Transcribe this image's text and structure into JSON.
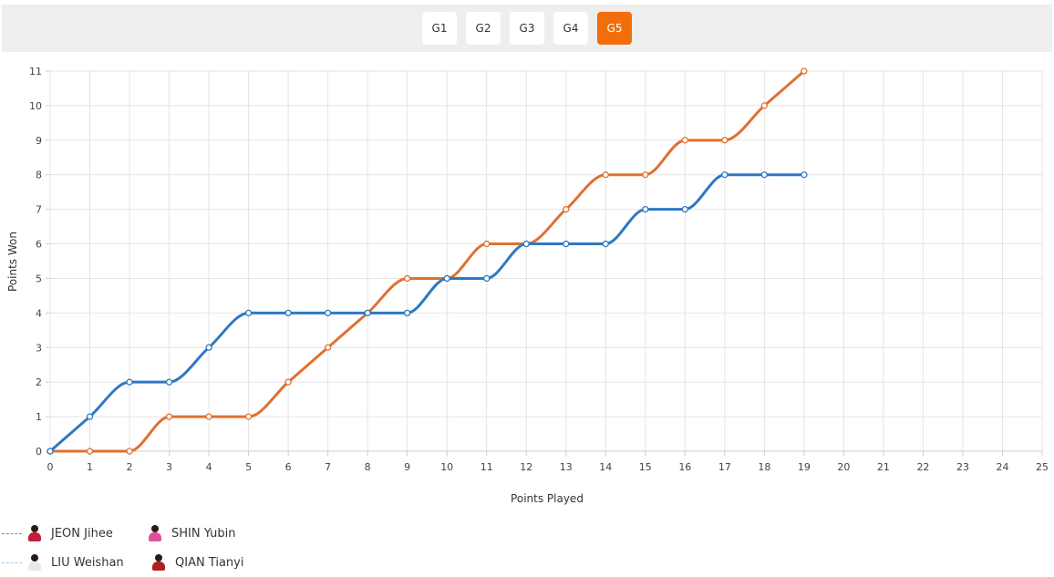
{
  "tabs": [
    {
      "label": "G1",
      "active": false
    },
    {
      "label": "G2",
      "active": false
    },
    {
      "label": "G3",
      "active": false
    },
    {
      "label": "G4",
      "active": false
    },
    {
      "label": "G5",
      "active": true
    }
  ],
  "colors": {
    "accent": "#f26d0b",
    "series_orange": "#e07030",
    "series_blue": "#2f78c4",
    "legend_blue": "#a9cdea"
  },
  "legend": [
    {
      "name": "JEON Jihee",
      "color": "#e07030",
      "avatar_color": "#c0203a"
    },
    {
      "name": "SHIN Yubin",
      "color": "",
      "avatar_color": "#e0509a"
    },
    {
      "name": "LIU Weishan",
      "color": "#a9cdea",
      "avatar_color": "#e8e8e8"
    },
    {
      "name": "QIAN Tianyi",
      "color": "",
      "avatar_color": "#b02020"
    }
  ],
  "chart_data": {
    "type": "line",
    "xlabel": "Points Played",
    "ylabel": "Points Won",
    "xlim": [
      0,
      25
    ],
    "ylim": [
      0,
      11
    ],
    "x_ticks": [
      0,
      1,
      2,
      3,
      4,
      5,
      6,
      7,
      8,
      9,
      10,
      11,
      12,
      13,
      14,
      15,
      16,
      17,
      18,
      19,
      20,
      21,
      22,
      23,
      24,
      25
    ],
    "y_ticks": [
      0,
      1,
      2,
      3,
      4,
      5,
      6,
      7,
      8,
      9,
      10,
      11
    ],
    "grid": true,
    "smooth": true,
    "series": [
      {
        "color": "#e07030",
        "x": [
          0,
          1,
          2,
          3,
          4,
          5,
          6,
          7,
          8,
          9,
          10,
          11,
          12,
          13,
          14,
          15,
          16,
          17,
          18,
          19
        ],
        "y": [
          0,
          0,
          0,
          1,
          1,
          1,
          2,
          3,
          4,
          5,
          5,
          6,
          6,
          7,
          8,
          8,
          9,
          9,
          10,
          11
        ]
      },
      {
        "color": "#2f78c4",
        "x": [
          0,
          1,
          2,
          3,
          4,
          5,
          6,
          7,
          8,
          9,
          10,
          11,
          12,
          13,
          14,
          15,
          16,
          17,
          18,
          19
        ],
        "y": [
          0,
          1,
          2,
          2,
          3,
          4,
          4,
          4,
          4,
          4,
          5,
          5,
          6,
          6,
          6,
          7,
          7,
          8,
          8,
          8
        ]
      }
    ]
  }
}
